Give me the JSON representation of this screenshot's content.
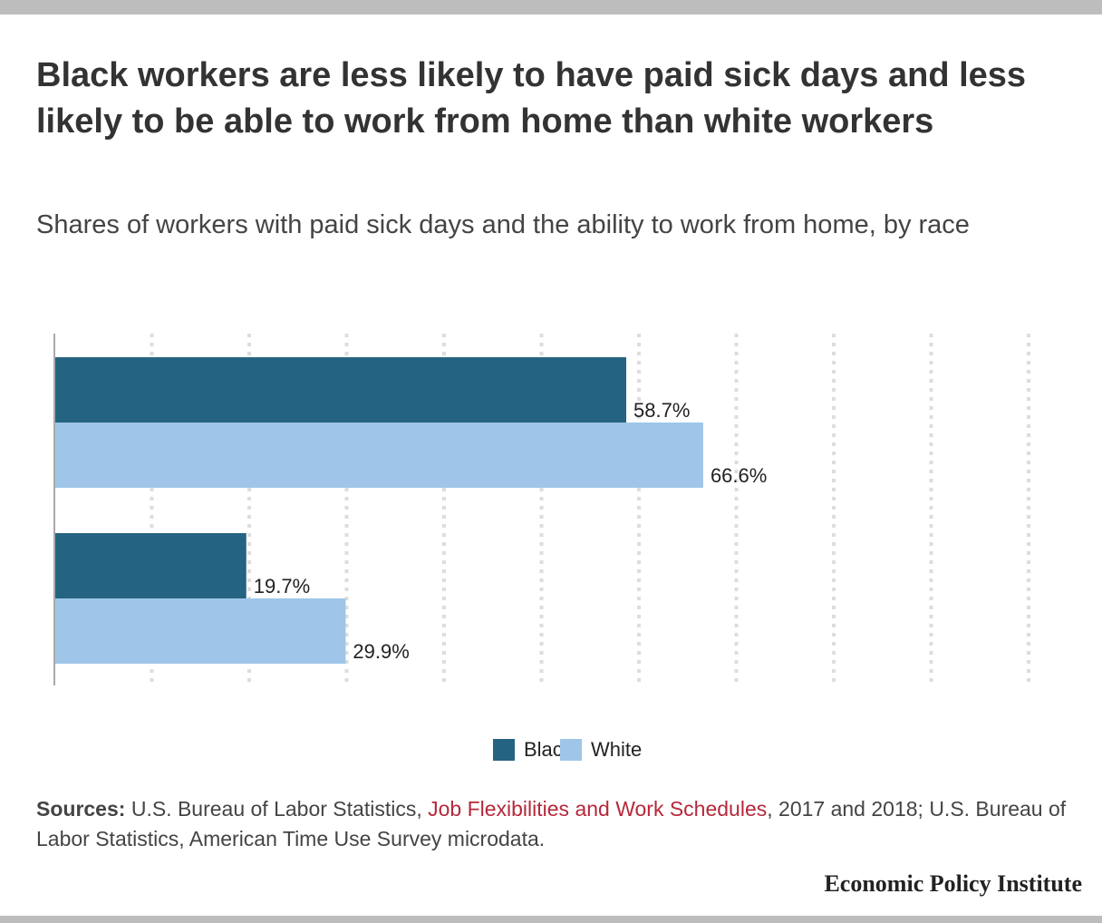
{
  "title": "Black workers are less likely to have paid sick days and less likely to be able to work from home than white workers",
  "subtitle": "Shares of workers with paid sick days and the ability to work from home, by race",
  "colors": {
    "black": "#256382",
    "white": "#9fc6e8",
    "link": "#b5283a",
    "grid": "#dddddd",
    "axis": "#aaaaaa"
  },
  "legend": {
    "black_label": "Black",
    "white_label": "White"
  },
  "sources": {
    "label": "Sources:",
    "text_before": "U.S. Bureau of Labor Statistics,",
    "link_text": "Job Flexibilities and Work Schedules",
    "text_after": ", 2017 and 2018; U.S. Bureau of Labor Statistics, American Time Use Survey microdata."
  },
  "brand": "Economic Policy Institute",
  "chart_data": {
    "type": "bar",
    "orientation": "horizontal",
    "categories": [
      "",
      ""
    ],
    "series": [
      {
        "name": "Black",
        "values": [
          58.7,
          19.7
        ],
        "labels": [
          "58.7%",
          "19.7%"
        ],
        "color": "#256382"
      },
      {
        "name": "White",
        "values": [
          66.6,
          29.9
        ],
        "labels": [
          "66.6%",
          "29.9%"
        ],
        "color": "#9fc6e8"
      }
    ],
    "xlim": [
      0,
      100
    ],
    "grid": true,
    "legend_position": "bottom"
  }
}
